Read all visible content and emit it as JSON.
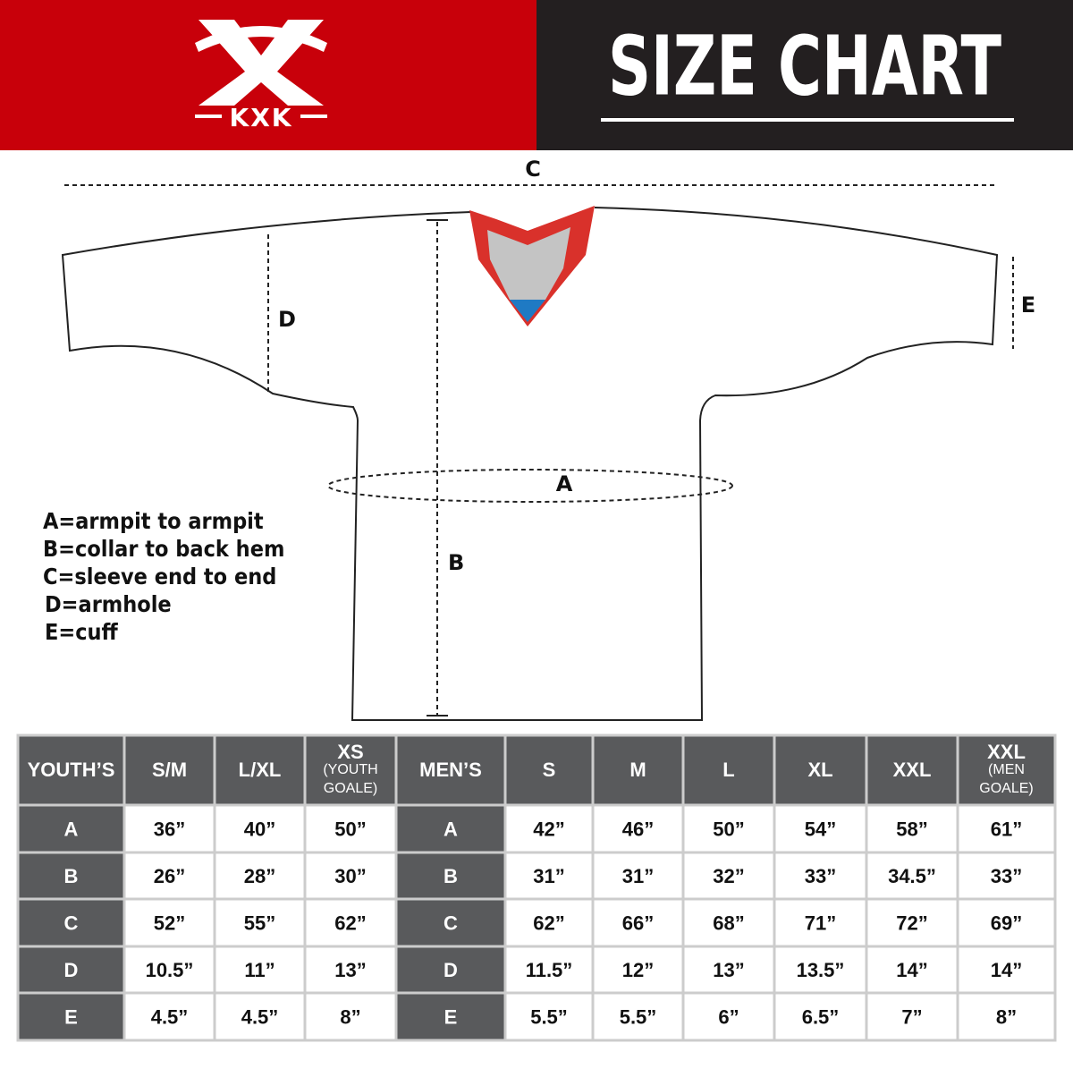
{
  "header": {
    "logo": "KXK",
    "title": "SIZE CHART"
  },
  "diagram": {
    "labels": {
      "a": "A",
      "b": "B",
      "c": "C",
      "d": "D",
      "e": "E"
    }
  },
  "legend": [
    "A=armpit to armpit",
    "B=collar to back hem",
    "C=sleeve end to end",
    "D=armhole",
    "E=cuff"
  ],
  "table": {
    "header": [
      "YOUTH’S",
      "S/M",
      "L/XL",
      {
        "label": "XS",
        "note": "(YOUTH GOALE)"
      },
      "MEN’S",
      "S",
      "M",
      "L",
      "XL",
      "XXL",
      {
        "label": "XXL",
        "note": "(MEN GOALE)"
      }
    ],
    "rows": [
      [
        "A",
        "36”",
        "40”",
        "50”",
        "A",
        "42”",
        "46”",
        "50”",
        "54”",
        "58”",
        "61”"
      ],
      [
        "B",
        "26”",
        "28”",
        "30”",
        "B",
        "31”",
        "31”",
        "32”",
        "33”",
        "34.5”",
        "33”"
      ],
      [
        "C",
        "52”",
        "55”",
        "62”",
        "C",
        "62”",
        "66”",
        "68”",
        "71”",
        "72”",
        "69”"
      ],
      [
        "D",
        "10.5”",
        "11”",
        "13”",
        "D",
        "11.5”",
        "12”",
        "13”",
        "13.5”",
        "14”",
        "14”"
      ],
      [
        "E",
        "4.5”",
        "4.5”",
        "8”",
        "E",
        "5.5”",
        "5.5”",
        "6”",
        "6.5”",
        "7”",
        "8”"
      ]
    ]
  }
}
